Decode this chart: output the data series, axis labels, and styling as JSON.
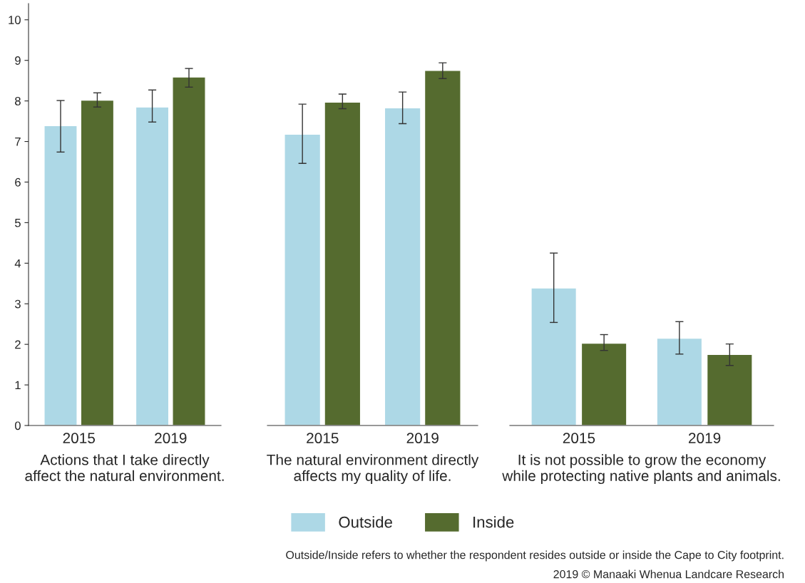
{
  "chart_data": [
    {
      "type": "bar",
      "categories": [
        "2015",
        "2019"
      ],
      "xlabel": "Actions that I take directly\naffect the natural environment.",
      "ylim": [
        0,
        10.4
      ],
      "yticks": [
        0,
        1,
        2,
        3,
        4,
        5,
        6,
        7,
        8,
        9,
        10
      ],
      "legend": "bottom",
      "grid": false,
      "series": [
        {
          "name": "Outside",
          "color": "#add8e6",
          "values": [
            7.39,
            7.85
          ],
          "errors": [
            [
              6.74,
              8.01
            ],
            [
              7.48,
              8.27
            ]
          ]
        },
        {
          "name": "Inside",
          "color": "#556b2f",
          "values": [
            8.02,
            8.59
          ],
          "errors": [
            [
              7.85,
              8.2
            ],
            [
              8.34,
              8.8
            ]
          ]
        }
      ]
    },
    {
      "type": "bar",
      "categories": [
        "2015",
        "2019"
      ],
      "xlabel": "The natural environment directly\naffects my quality of life.",
      "ylim": [
        0,
        10
      ],
      "yticks": [
        0,
        1,
        2,
        3,
        4,
        5,
        6,
        7,
        8,
        9,
        10
      ],
      "tick_labels": "x",
      "grid": false,
      "series": [
        {
          "name": "Outside",
          "color": "#add8e6",
          "values": [
            7.18,
            7.83
          ],
          "errors": [
            [
              6.46,
              7.92
            ],
            [
              7.44,
              8.22
            ]
          ]
        },
        {
          "name": "Inside",
          "color": "#556b2f",
          "values": [
            7.97,
            8.75
          ],
          "errors": [
            [
              7.81,
              8.17
            ],
            [
              8.55,
              8.94
            ]
          ]
        }
      ]
    },
    {
      "type": "bar",
      "categories": [
        "2015",
        "2019"
      ],
      "xlabel": "It is not possible to grow the economy\nwhile protecting native plants and animals.",
      "ylim": [
        0,
        10
      ],
      "yticks": [
        0,
        1,
        2,
        3,
        4,
        5,
        6,
        7,
        8,
        9,
        10
      ],
      "tick_labels": "x",
      "grid": false,
      "annotations": [
        "Outside/Inside refers to whether the respondent resides outside or inside the Cape to City footprint.",
        "2019 © Manaaki Whenua Landcare Research"
      ],
      "series": [
        {
          "name": "Outside",
          "color": "#add8e6",
          "values": [
            3.39,
            2.15
          ],
          "errors": [
            [
              2.54,
              4.25
            ],
            [
              1.76,
              2.56
            ]
          ]
        },
        {
          "name": "Inside",
          "color": "#556b2f",
          "values": [
            2.03,
            1.75
          ],
          "errors": [
            [
              1.85,
              2.24
            ],
            [
              1.48,
              2.01
            ]
          ]
        }
      ]
    }
  ]
}
